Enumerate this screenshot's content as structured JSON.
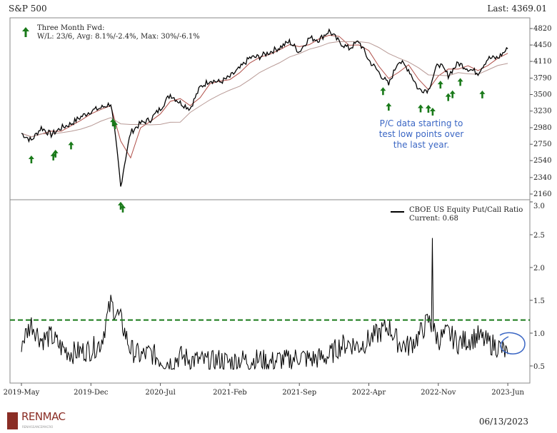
{
  "header": {
    "title": "S&P 500",
    "last": "Last: 4369.01"
  },
  "footer": {
    "logo": "RENMAC",
    "logo_sub": "RENAISSANCEMACRO",
    "date": "06/13/2023"
  },
  "annotation": "P/C data starting to test low points over the last year.",
  "colors": {
    "price": "#000000",
    "ma_short": "#b0504a",
    "ma_long": "#b89a96",
    "signal": "#1a7a1a",
    "threshold": "#1a7a1a",
    "annotation": "#3a66c4"
  },
  "chart_data": [
    {
      "type": "line",
      "title": "S&P 500",
      "scale": "log",
      "ylim": [
        2160,
        4820
      ],
      "yticks": [
        2160,
        2340,
        2540,
        2750,
        2980,
        3230,
        3500,
        3790,
        4110,
        4450,
        4820
      ],
      "legend": {
        "icon": "up-arrow",
        "line1": "Three Month Fwd:",
        "line2": "W/L: 23/6, Avg: 8.1%/-2.4%, Max: 30%/-6.1%"
      },
      "x": [
        "2019-05",
        "2019-06",
        "2019-07",
        "2019-08",
        "2019-09",
        "2019-10",
        "2019-11",
        "2019-12",
        "2020-01",
        "2020-02",
        "2020-03",
        "2020-04",
        "2020-05",
        "2020-06",
        "2020-07",
        "2020-08",
        "2020-09",
        "2020-10",
        "2020-11",
        "2020-12",
        "2021-01",
        "2021-02",
        "2021-03",
        "2021-04",
        "2021-05",
        "2021-06",
        "2021-07",
        "2021-08",
        "2021-09",
        "2021-10",
        "2021-11",
        "2021-12",
        "2022-01",
        "2022-02",
        "2022-03",
        "2022-04",
        "2022-05",
        "2022-06",
        "2022-07",
        "2022-08",
        "2022-09",
        "2022-10",
        "2022-11",
        "2022-12",
        "2023-01",
        "2023-02",
        "2023-03",
        "2023-04",
        "2023-05",
        "2023-06"
      ],
      "values": [
        2900,
        2800,
        2980,
        2880,
        2977,
        3038,
        3141,
        3231,
        3280,
        3350,
        2237,
        2912,
        3044,
        3100,
        3271,
        3500,
        3363,
        3270,
        3622,
        3756,
        3714,
        3811,
        3973,
        4181,
        4204,
        4298,
        4395,
        4523,
        4308,
        4605,
        4567,
        4766,
        4516,
        4374,
        4530,
        4132,
        3900,
        3666,
        4130,
        3955,
        3586,
        3580,
        4080,
        3840,
        4077,
        3970,
        3890,
        4169,
        4180,
        4369
      ],
      "signals": [
        "2019-06",
        "2019-08",
        "2019-08",
        "2019-10",
        "2020-02",
        "2020-02",
        "2020-03",
        "2020-03",
        "2022-05",
        "2022-06",
        "2022-09",
        "2022-10",
        "2022-10",
        "2022-11",
        "2022-12",
        "2022-12",
        "2023-01",
        "2023-03"
      ]
    },
    {
      "type": "line",
      "series": [
        {
          "name": "CBOE US Equity Put/Call Ratio"
        }
      ],
      "legend_current": "Current: 0.68",
      "ylim": [
        0.3,
        3.0
      ],
      "yticks": [
        0.5,
        1.0,
        1.5,
        2.0,
        2.5,
        3.0
      ],
      "threshold": 1.2,
      "xticks": [
        "2019-May",
        "2019-Dec",
        "2020-Jul",
        "2021-Feb",
        "2021-Sep",
        "2022-Apr",
        "2022-Nov",
        "2023-Jun"
      ],
      "values": [
        0.85,
        1.15,
        0.9,
        0.95,
        0.78,
        0.7,
        0.72,
        0.75,
        0.85,
        1.45,
        1.2,
        0.75,
        0.65,
        0.7,
        0.6,
        0.55,
        0.65,
        0.6,
        0.58,
        0.55,
        0.6,
        0.55,
        0.6,
        0.58,
        0.6,
        0.55,
        0.6,
        0.58,
        0.65,
        0.6,
        0.62,
        0.65,
        0.8,
        0.85,
        0.8,
        0.9,
        1.0,
        1.1,
        0.85,
        0.8,
        0.95,
        1.2,
        0.9,
        1.0,
        0.85,
        0.9,
        0.95,
        0.85,
        0.8,
        0.68
      ]
    }
  ]
}
